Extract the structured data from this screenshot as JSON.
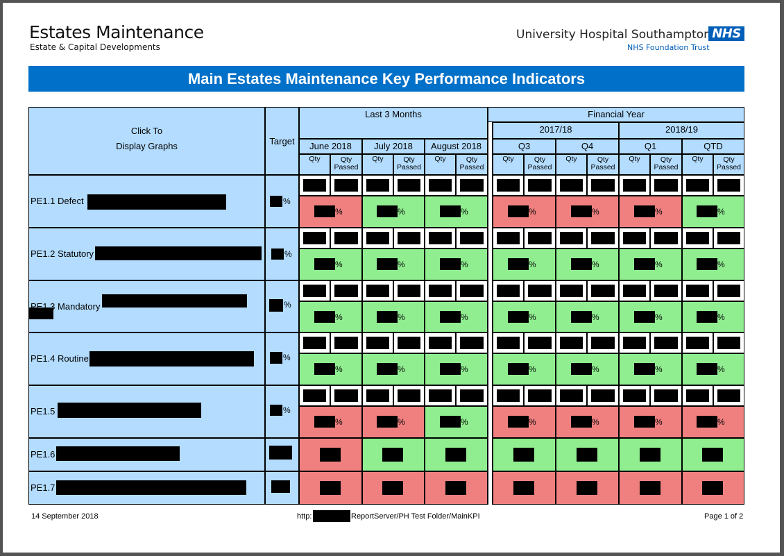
{
  "header": {
    "title": "Estates Maintenance",
    "subtitle": "Estate & Capital Developments",
    "org_name": "University Hospital Southampton",
    "org_logo": "NHS",
    "org_trust": "NHS Foundation Trust"
  },
  "banner": "Main Estates Maintenance Key Performance Indicators",
  "table": {
    "click_to": "Click To",
    "display_graphs": "Display Graphs",
    "target": "Target",
    "last3": "Last 3 Months",
    "fy": "Financial Year",
    "fy_years": [
      "2017/18",
      "2018/19"
    ],
    "months": [
      "June 2018",
      "July 2018",
      "August 2018"
    ],
    "quarters": [
      "Q3",
      "Q4",
      "Q1",
      "QTD"
    ],
    "qty": "Qty",
    "qty_passed": "Qty Passed",
    "pct": "%",
    "rows": [
      {
        "label": "PE1.1 Defect",
        "status": [
          "red",
          "grn",
          "grn",
          "red",
          "red",
          "red",
          "grn"
        ]
      },
      {
        "label": "PE1.2 Statutory",
        "status": [
          "grn",
          "grn",
          "grn",
          "grn",
          "grn",
          "grn",
          "grn"
        ]
      },
      {
        "label": "PE1.3 Mandatory",
        "status": [
          "grn",
          "grn",
          "grn",
          "grn",
          "grn",
          "grn",
          "grn"
        ]
      },
      {
        "label": "PE1.4 Routine",
        "status": [
          "grn",
          "grn",
          "grn",
          "grn",
          "grn",
          "grn",
          "grn"
        ]
      },
      {
        "label": "PE1.5",
        "status": [
          "red",
          "red",
          "grn",
          "red",
          "red",
          "red",
          "red"
        ]
      },
      {
        "label": "PE1.6",
        "status": [
          "red",
          "grn",
          "grn",
          "grn",
          "grn",
          "grn",
          "grn"
        ]
      },
      {
        "label": "PE1.7",
        "status": [
          "red",
          "red",
          "red",
          "red",
          "red",
          "red",
          "red"
        ]
      }
    ]
  },
  "footer": {
    "date": "14 September 2018",
    "url_prefix": "http:",
    "url_suffix": "ReportServer/PH Test Folder/MainKPI",
    "page": "Page 1 of 2"
  },
  "colors": {
    "banner": "#0070c8",
    "header_fill": "#b3dcff",
    "fail": "#f08080",
    "pass": "#90ee90",
    "nhs_blue": "#005eb8"
  },
  "redacted_marker": "black-redaction-block"
}
